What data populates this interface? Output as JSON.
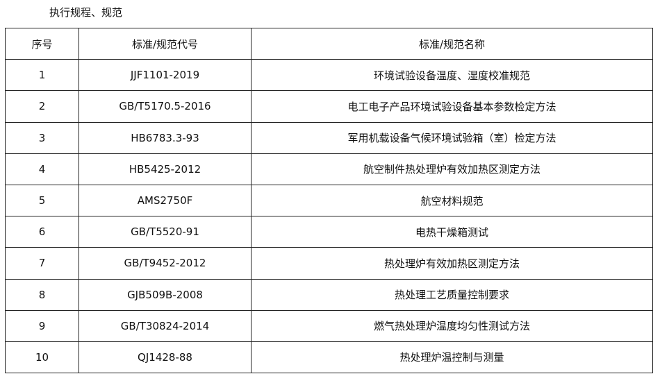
{
  "title": "执行规程、规范",
  "headers": [
    "序号",
    "标准/规范代号",
    "标准/规范名称"
  ],
  "rows": [
    [
      "1",
      "JJF1101-2019",
      "环境试验设备温度、湿度校准规范"
    ],
    [
      "2",
      "GB/T5170.5-2016",
      "电工电子产品环境试验设备基本参数检定方法"
    ],
    [
      "3",
      "HB6783.3-93",
      "军用机载设备气候环境试验箱（室）检定方法"
    ],
    [
      "4",
      "HB5425-2012",
      "航空制件热处理炉有效加热区测定方法"
    ],
    [
      "5",
      "AMS2750F",
      "航空材料规范"
    ],
    [
      "6",
      "GB/T5520-91",
      "电热干燥箱测试"
    ],
    [
      "7",
      "GB/T9452-2012",
      "热处理炉有效加热区测定方法"
    ],
    [
      "8",
      "GJB509B-2008",
      "热处理工艺质量控制要求"
    ],
    [
      "9",
      "GB/T30824-2014",
      "燃气热处理炉温度均匀性测试方法"
    ],
    [
      "10",
      "QJ1428-88",
      "热处理炉温控制与测量"
    ]
  ]
}
